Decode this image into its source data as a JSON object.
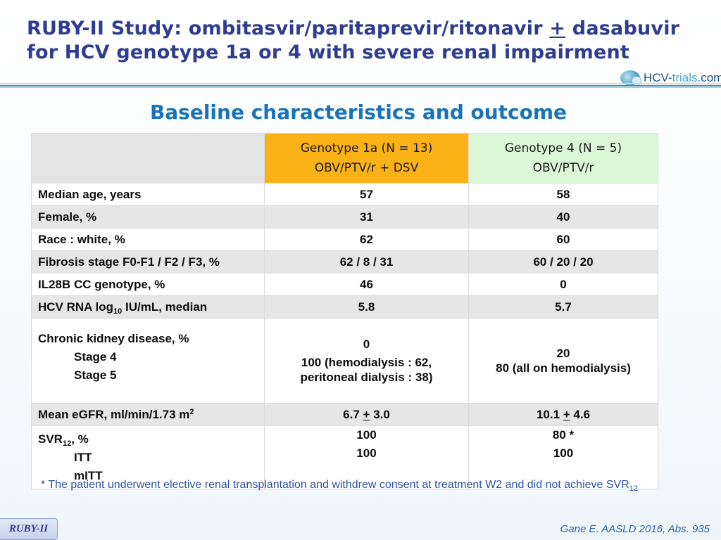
{
  "header": {
    "title_line1_before": "RUBY-II Study: ombitasvir/paritaprevir/ritonavir ",
    "title_line1_plus": "+",
    "title_line1_after": " dasabuvir",
    "title_line2": "for HCV genotype 1a or 4 with severe renal impairment",
    "logo_text_a": "HCV-",
    "logo_text_b": "trials",
    "logo_text_c": ".com"
  },
  "subtitle": "Baseline characteristics and outcome",
  "table": {
    "col1_header_line1": "Genotype 1a (N = 13)",
    "col1_header_line2": "OBV/PTV/r + DSV",
    "col2_header_line1": "Genotype 4 (N = 5)",
    "col2_header_line2": "OBV/PTV/r",
    "rows": {
      "age": {
        "label": "Median age, years",
        "g1a": "57",
        "g4": "58"
      },
      "female": {
        "label": "Female, %",
        "g1a": "31",
        "g4": "40"
      },
      "race": {
        "label": "Race : white, %",
        "g1a": "62",
        "g4": "60"
      },
      "fibrosis": {
        "label": "Fibrosis stage F0-F1 / F2 / F3, %",
        "g1a": "62 / 8 / 31",
        "g4": "60 / 20 / 20"
      },
      "il28b": {
        "label": "IL28B CC genotype, %",
        "g1a": "46",
        "g4": "0"
      },
      "hcvrna": {
        "label_a": "HCV RNA log",
        "label_sub": "10",
        "label_b": " IU/mL, median",
        "g1a": "5.8",
        "g4": "5.7"
      },
      "ckd": {
        "label": "Chronic kidney disease, %",
        "stage4_label": "Stage 4",
        "stage5_label": "Stage 5",
        "g1a_stage4": "0",
        "g1a_stage5_line1": "100 (hemodialysis : 62,",
        "g1a_stage5_line2": "peritoneal dialysis : 38)",
        "g4_stage4": "20",
        "g4_stage5": "80 (all on hemodialysis)"
      },
      "egfr": {
        "label_a": "Mean eGFR, ml/min/1.73 m",
        "label_sup": "2",
        "g1a_a": "6.7 ",
        "g1a_pm": "+",
        "g1a_b": " 3.0",
        "g4_a": "10.1 ",
        "g4_pm": "+",
        "g4_b": " 4.6"
      },
      "svr": {
        "label_a": "SVR",
        "label_sub": "12",
        "label_b": ", %",
        "itt_label": "ITT",
        "mitt_label": "mITT",
        "g1a_itt": "100",
        "g1a_mitt": "100",
        "g4_itt": "80 *",
        "g4_mitt": "100"
      }
    }
  },
  "footnote": {
    "text": "* The patient underwent elective renal transplantation and withdrew consent at treatment W2 and did not achieve SVR",
    "sub": "12"
  },
  "footer": {
    "badge": "RUBY-II",
    "citation": "Gane E. AASLD 2016, Abs. 935"
  }
}
